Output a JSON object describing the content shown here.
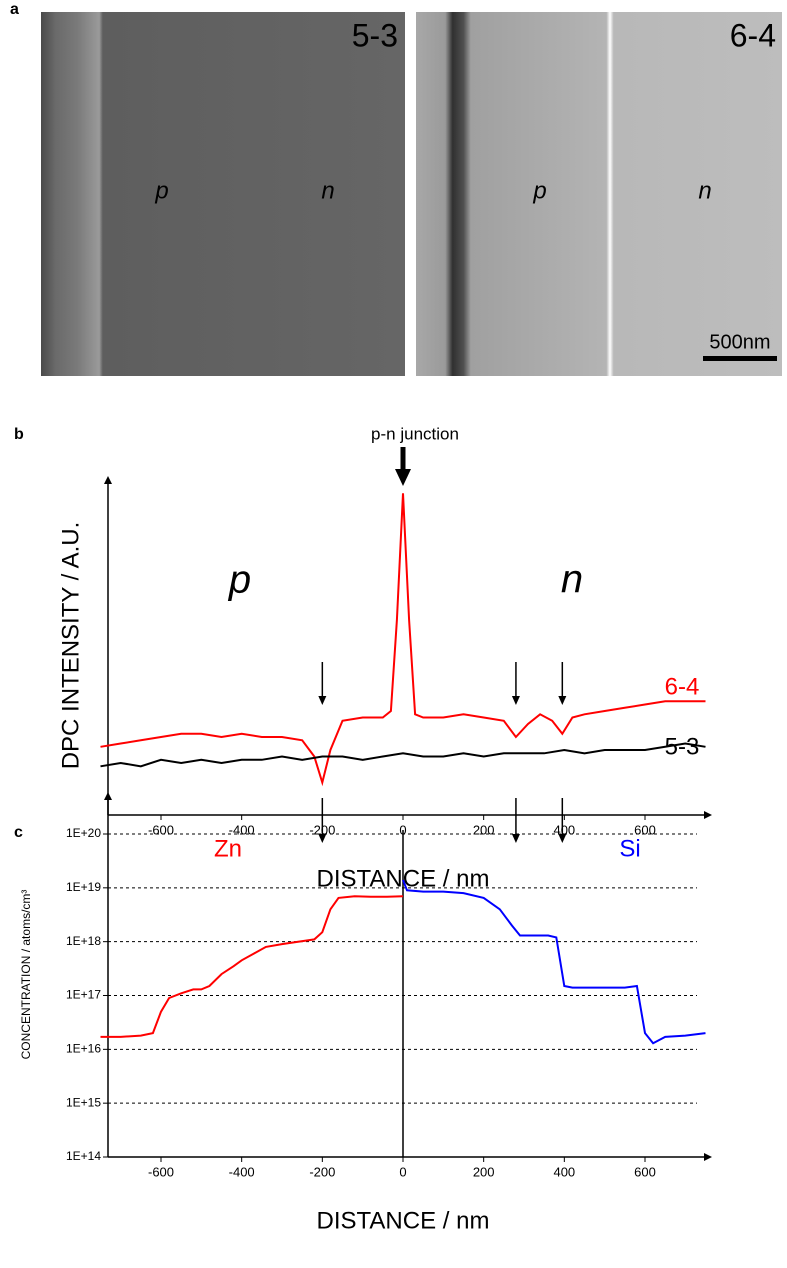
{
  "panel_a": {
    "label": "a",
    "images": [
      {
        "label": "5-3",
        "p": "p",
        "n": "n"
      },
      {
        "label": "6-4",
        "p": "p",
        "n": "n",
        "scale_bar": "500nm"
      }
    ]
  },
  "chart_data": [
    {
      "type": "line",
      "panel_label": "b",
      "y_label": "DPC INTENSITY / A.U.",
      "x_label": "DISTANCE / nm",
      "annotation": "p-n junction",
      "region_left": "p",
      "region_right": "n",
      "xlim": [
        -750,
        750
      ],
      "xticks": [
        -600,
        -400,
        -200,
        0,
        200,
        400,
        600
      ],
      "ylim": [
        0,
        100
      ],
      "grid": false,
      "log_y": false,
      "arrows_x": [
        -200,
        280,
        395
      ],
      "series": [
        {
          "name": "6-4",
          "color": "#ff0000",
          "x": [
            -750,
            -700,
            -650,
            -600,
            -550,
            -500,
            -450,
            -400,
            -350,
            -300,
            -250,
            -220,
            -200,
            -180,
            -150,
            -100,
            -50,
            -30,
            -15,
            0,
            15,
            30,
            50,
            100,
            150,
            200,
            250,
            280,
            310,
            340,
            370,
            395,
            420,
            450,
            500,
            550,
            600,
            650,
            700,
            750
          ],
          "values": [
            21,
            22,
            23,
            24,
            25,
            25,
            24,
            25,
            24,
            24,
            23,
            18,
            10,
            20,
            29,
            30,
            30,
            32,
            60,
            99,
            60,
            31,
            30,
            30,
            31,
            30,
            29,
            24,
            28,
            31,
            29,
            25,
            30,
            31,
            32,
            33,
            34,
            35,
            35,
            35
          ]
        },
        {
          "name": "5-3",
          "color": "#000000",
          "x": [
            -750,
            -700,
            -650,
            -600,
            -550,
            -500,
            -450,
            -400,
            -350,
            -300,
            -250,
            -200,
            -150,
            -100,
            -50,
            0,
            50,
            100,
            150,
            200,
            250,
            300,
            350,
            400,
            450,
            500,
            550,
            600,
            650,
            700,
            750
          ],
          "values": [
            15,
            16,
            15,
            17,
            16,
            17,
            16,
            17,
            17,
            18,
            17,
            18,
            18,
            17,
            18,
            19,
            18,
            18,
            19,
            18,
            19,
            19,
            19,
            20,
            19,
            20,
            20,
            20,
            21,
            22,
            21
          ]
        }
      ]
    },
    {
      "type": "line",
      "panel_label": "c",
      "y_label": "CONCENTRATION / atoms/cm³",
      "x_label": "DISTANCE / nm",
      "xlim": [
        -750,
        750
      ],
      "xticks": [
        -600,
        -400,
        -200,
        0,
        200,
        400,
        600
      ],
      "ylim": [
        100000000000000.0,
        1e+20
      ],
      "log_y": true,
      "grid": true,
      "yticks": [
        {
          "value": 100000000000000.0,
          "label": "1E+14"
        },
        {
          "value": 1000000000000000.0,
          "label": "1E+15"
        },
        {
          "value": 1e+16,
          "label": "1E+16"
        },
        {
          "value": 1e+17,
          "label": "1E+17"
        },
        {
          "value": 1e+18,
          "label": "1E+18"
        },
        {
          "value": 1e+19,
          "label": "1E+19"
        },
        {
          "value": 1e+20,
          "label": "1E+20"
        }
      ],
      "arrows_x": [
        -200,
        280,
        395
      ],
      "series": [
        {
          "name": "Zn",
          "color": "#ff0000",
          "x": [
            -750,
            -700,
            -650,
            -620,
            -600,
            -580,
            -550,
            -520,
            -500,
            -480,
            -450,
            -420,
            -400,
            -370,
            -340,
            -300,
            -260,
            -220,
            -200,
            -180,
            -160,
            -120,
            -80,
            -40,
            0
          ],
          "values": [
            1.7e+16,
            1.7e+16,
            1.8e+16,
            2e+16,
            5e+16,
            9e+16,
            1.1e+17,
            1.3e+17,
            1.3e+17,
            1.5e+17,
            2.5e+17,
            3.5e+17,
            4.5e+17,
            6e+17,
            8e+17,
            9e+17,
            1e+18,
            1.1e+18,
            1.5e+18,
            4e+18,
            6.5e+18,
            7e+18,
            6.8e+18,
            6.8e+18,
            7e+18
          ]
        },
        {
          "name": "Si",
          "color": "#0000ff",
          "x": [
            0,
            10,
            50,
            100,
            150,
            200,
            240,
            270,
            290,
            320,
            360,
            380,
            400,
            420,
            450,
            500,
            550,
            580,
            600,
            620,
            650,
            700,
            750
          ],
          "values": [
            1.4e+19,
            9e+18,
            8.5e+18,
            8.5e+18,
            8e+18,
            6.5e+18,
            4e+18,
            2e+18,
            1.3e+18,
            1.3e+18,
            1.3e+18,
            1.2e+18,
            1.5e+17,
            1.4e+17,
            1.4e+17,
            1.4e+17,
            1.4e+17,
            1.5e+17,
            2e+16,
            1.3e+16,
            1.7e+16,
            1.8e+16,
            2e+16
          ]
        }
      ]
    }
  ]
}
